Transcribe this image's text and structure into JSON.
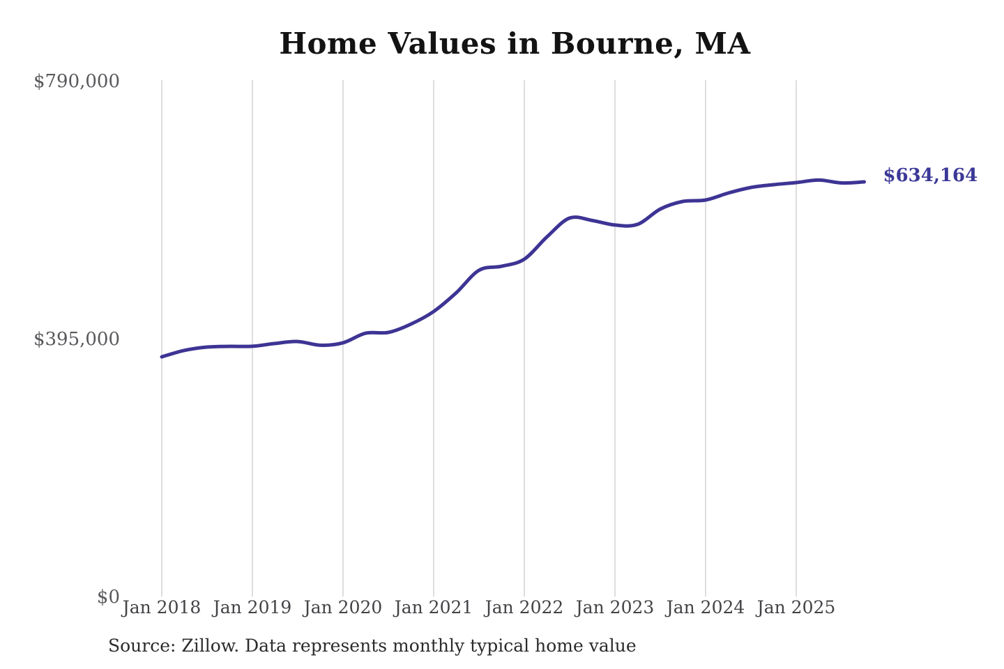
{
  "chart_data": {
    "type": "line",
    "title": "Home Values in Bourne, MA",
    "xlabel": "",
    "ylabel": "",
    "ylim": [
      0,
      790000
    ],
    "x_range_months": [
      "2018-01",
      "2025-10"
    ],
    "grid": "vertical-only",
    "legend": "none",
    "line_color": "#3d3494",
    "grid_color": "#cbcbce",
    "end_label": {
      "text": "$634,164",
      "value": 634164,
      "color": "#3b3897"
    },
    "y_ticks": [
      {
        "label": "$790,000",
        "value": 790000
      },
      {
        "label": "$395,000",
        "value": 395000
      },
      {
        "label": "$0",
        "value": 0
      }
    ],
    "x_ticks": [
      "Jan 2018",
      "Jan 2019",
      "Jan 2020",
      "Jan 2021",
      "Jan 2022",
      "Jan 2023",
      "Jan 2024",
      "Jan 2025"
    ],
    "series": [
      {
        "name": "Monthly typical home value",
        "points": [
          [
            "2018-01",
            366100
          ],
          [
            "2018-04",
            376000
          ],
          [
            "2018-07",
            381100
          ],
          [
            "2018-10",
            382200
          ],
          [
            "2019-01",
            382300
          ],
          [
            "2019-04",
            386600
          ],
          [
            "2019-07",
            389600
          ],
          [
            "2019-10",
            383900
          ],
          [
            "2020-01",
            387600
          ],
          [
            "2020-04",
            402400
          ],
          [
            "2020-07",
            403500
          ],
          [
            "2020-10",
            416300
          ],
          [
            "2021-01",
            435600
          ],
          [
            "2021-04",
            464400
          ],
          [
            "2021-07",
            498700
          ],
          [
            "2021-10",
            504900
          ],
          [
            "2022-01",
            515700
          ],
          [
            "2022-04",
            549900
          ],
          [
            "2022-07",
            578700
          ],
          [
            "2022-10",
            575000
          ],
          [
            "2023-01",
            568000
          ],
          [
            "2023-04",
            569100
          ],
          [
            "2023-07",
            592500
          ],
          [
            "2023-10",
            604200
          ],
          [
            "2024-01",
            606400
          ],
          [
            "2024-04",
            617100
          ],
          [
            "2024-07",
            625600
          ],
          [
            "2024-10",
            629900
          ],
          [
            "2025-01",
            633100
          ],
          [
            "2025-04",
            636900
          ],
          [
            "2025-07",
            632500
          ],
          [
            "2025-10",
            634164
          ]
        ]
      }
    ],
    "source_note": "Source: Zillow. Data represents monthly typical home value"
  }
}
